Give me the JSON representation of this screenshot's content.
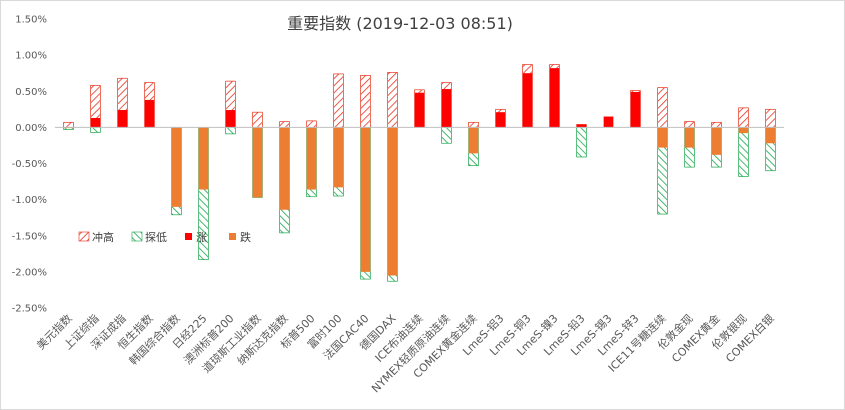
{
  "chart_data": {
    "type": "bar",
    "title": "重要指数 (2019-12-03 08:51)",
    "xlabel": "",
    "ylabel": "",
    "ylim": [
      -0.025,
      0.015
    ],
    "ytick_values": [
      0.015,
      0.01,
      0.005,
      0,
      -0.005,
      -0.01,
      -0.015,
      -0.02,
      -0.025
    ],
    "ytick_labels": [
      "1.50%",
      "1.00%",
      "0.50%",
      "0.00%",
      "-0.50%",
      "-1.00%",
      "-1.50%",
      "-2.00%",
      "-2.50%"
    ],
    "grid": false,
    "legend_position": "lower-left",
    "categories": [
      "美元指数",
      "上证综指",
      "深证成指",
      "恒生指数",
      "韩国综合指数",
      "日经225",
      "澳洲标普200",
      "道琼斯工业指数",
      "纳斯达克指数",
      "标普500",
      "富时100",
      "法国CAC40",
      "德国DAX",
      "ICE布油连续",
      "NYMEX轻质原油连续",
      "COMEX黄金连续",
      "LmeS-铝3",
      "LmeS-铜3",
      "LmeS-镍3",
      "LmeS-铅3",
      "LmeS-锡3",
      "LmeS-锌3",
      "ICE11号糖连续",
      "伦敦金现",
      "COMEX黄金",
      "伦敦银现",
      "COMEX白银"
    ],
    "series": [
      {
        "name": "冲高",
        "color": "#e8301a",
        "pattern": "diagonal-hatch",
        "values": [
          0.0007,
          0.0058,
          0.0068,
          0.0062,
          0.0,
          0.0,
          0.0064,
          0.0021,
          0.0008,
          0.0009,
          0.0074,
          0.0072,
          0.0076,
          0.0052,
          0.0062,
          0.0007,
          0.0025,
          0.0087,
          0.0087,
          0.0004,
          0.0,
          0.0051,
          0.0055,
          0.0008,
          0.0007,
          0.0027,
          0.0025
        ]
      },
      {
        "name": "探低",
        "color": "#1aa64b",
        "pattern": "diagonal-hatch",
        "values": [
          -0.0003,
          -0.0007,
          0.0,
          0.0,
          -0.0121,
          -0.0183,
          -0.0009,
          -0.0097,
          -0.0146,
          -0.0096,
          -0.0095,
          -0.021,
          -0.0213,
          0.0,
          -0.0022,
          -0.0053,
          0.0,
          0.0,
          0.0,
          -0.0041,
          0.0,
          0.0,
          -0.012,
          -0.0055,
          -0.0055,
          -0.0068,
          -0.006
        ]
      },
      {
        "name": "涨",
        "color": "#ff0000",
        "pattern": "solid",
        "values": [
          0.0,
          0.0013,
          0.0024,
          0.0038,
          0.0,
          0.0,
          0.0024,
          0.0,
          0.0,
          0.0,
          0.0,
          0.0,
          0.0,
          0.0048,
          0.0053,
          0.0,
          0.0021,
          0.0075,
          0.0082,
          0.0004,
          0.0015,
          0.0049,
          0.0,
          0.0,
          0.0,
          0.0,
          0.0
        ]
      },
      {
        "name": "跌",
        "color": "#ed7d31",
        "pattern": "solid",
        "values": [
          -0.0001,
          0.0,
          0.0,
          0.0,
          -0.011,
          -0.0086,
          0.0,
          -0.0097,
          -0.0114,
          -0.0086,
          -0.0083,
          -0.02,
          -0.0205,
          0.0,
          0.0,
          -0.0036,
          0.0,
          0.0,
          0.0,
          0.0,
          0.0,
          0.0,
          -0.0028,
          -0.0028,
          -0.0038,
          -0.0008,
          -0.0022
        ]
      }
    ]
  }
}
